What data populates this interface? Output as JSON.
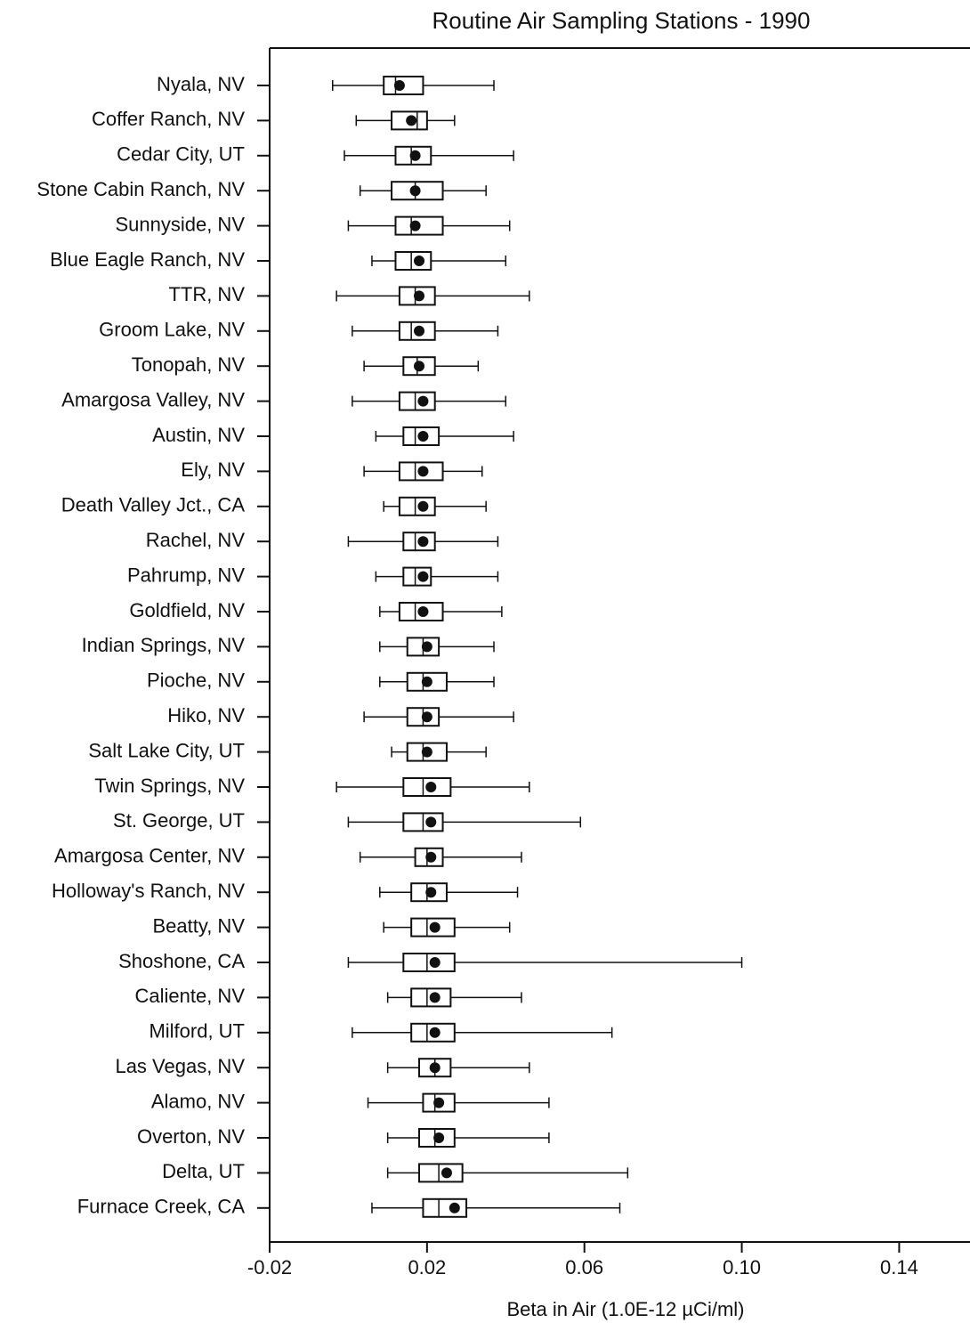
{
  "chart_data": {
    "type": "box",
    "title": "Routine Air Sampling Stations - 1990",
    "x_label": "Beta in Air (1.0E-12 µCi/ml)",
    "categories": [
      "Nyala, NV",
      "Coffer Ranch, NV",
      "Cedar City, UT",
      "Stone Cabin Ranch, NV",
      "Sunnyside, NV",
      "Blue Eagle Ranch, NV",
      "TTR, NV",
      "Groom Lake, NV",
      "Tonopah, NV",
      "Amargosa Valley, NV",
      "Austin, NV",
      "Ely, NV",
      "Death Valley Jct., CA",
      "Rachel, NV",
      "Pahrump, NV",
      "Goldfield, NV",
      "Indian Springs, NV",
      "Pioche, NV",
      "Hiko, NV",
      "Salt Lake City, UT",
      "Twin Springs, NV",
      "St. George, UT",
      "Amargosa Center, NV",
      "Holloway's Ranch, NV",
      "Beatty, NV",
      "Shoshone, CA",
      "Caliente, NV",
      "Milford, UT",
      "Las Vegas, NV",
      "Alamo, NV",
      "Overton, NV",
      "Delta, UT",
      "Furnace Creek, CA"
    ],
    "min": [
      -0.004,
      0.002,
      -0.001,
      0.003,
      0.0,
      0.006,
      -0.003,
      0.001,
      0.004,
      0.001,
      0.007,
      0.004,
      0.009,
      0.0,
      0.007,
      0.008,
      0.008,
      0.008,
      0.004,
      0.011,
      -0.003,
      0.0,
      0.003,
      0.008,
      0.009,
      0.0,
      0.01,
      0.001,
      0.01,
      0.005,
      0.01,
      0.01,
      0.006
    ],
    "q1": [
      0.009,
      0.011,
      0.012,
      0.011,
      0.012,
      0.012,
      0.013,
      0.013,
      0.014,
      0.013,
      0.014,
      0.013,
      0.013,
      0.014,
      0.014,
      0.013,
      0.015,
      0.015,
      0.015,
      0.015,
      0.014,
      0.014,
      0.017,
      0.016,
      0.016,
      0.014,
      0.016,
      0.016,
      0.018,
      0.019,
      0.018,
      0.018,
      0.019
    ],
    "median": [
      0.012,
      0.0175,
      0.016,
      0.017,
      0.016,
      0.016,
      0.017,
      0.016,
      0.0175,
      0.017,
      0.017,
      0.017,
      0.017,
      0.017,
      0.017,
      0.017,
      0.019,
      0.019,
      0.019,
      0.019,
      0.019,
      0.019,
      0.02,
      0.02,
      0.02,
      0.02,
      0.02,
      0.02,
      0.022,
      0.022,
      0.022,
      0.023,
      0.023
    ],
    "q3": [
      0.019,
      0.02,
      0.021,
      0.024,
      0.024,
      0.021,
      0.022,
      0.022,
      0.022,
      0.022,
      0.023,
      0.024,
      0.022,
      0.022,
      0.021,
      0.024,
      0.023,
      0.025,
      0.023,
      0.025,
      0.026,
      0.024,
      0.024,
      0.025,
      0.027,
      0.027,
      0.026,
      0.027,
      0.026,
      0.027,
      0.027,
      0.029,
      0.03
    ],
    "max": [
      0.037,
      0.027,
      0.042,
      0.035,
      0.041,
      0.04,
      0.046,
      0.038,
      0.033,
      0.04,
      0.042,
      0.034,
      0.035,
      0.038,
      0.038,
      0.039,
      0.037,
      0.037,
      0.042,
      0.035,
      0.046,
      0.059,
      0.044,
      0.043,
      0.041,
      0.1,
      0.044,
      0.067,
      0.046,
      0.051,
      0.051,
      0.071,
      0.069
    ],
    "mean": [
      0.013,
      0.016,
      0.017,
      0.017,
      0.017,
      0.018,
      0.018,
      0.018,
      0.018,
      0.019,
      0.019,
      0.019,
      0.019,
      0.019,
      0.019,
      0.019,
      0.02,
      0.02,
      0.02,
      0.02,
      0.021,
      0.021,
      0.021,
      0.021,
      0.022,
      0.022,
      0.022,
      0.022,
      0.022,
      0.023,
      0.023,
      0.025,
      0.027
    ],
    "color": "#111111",
    "xlim": [
      -0.02,
      0.158
    ],
    "xticks": [
      -0.02,
      0.02,
      0.06,
      {
        "value": 0.1,
        "label": "0.10"
      },
      0.14
    ]
  }
}
